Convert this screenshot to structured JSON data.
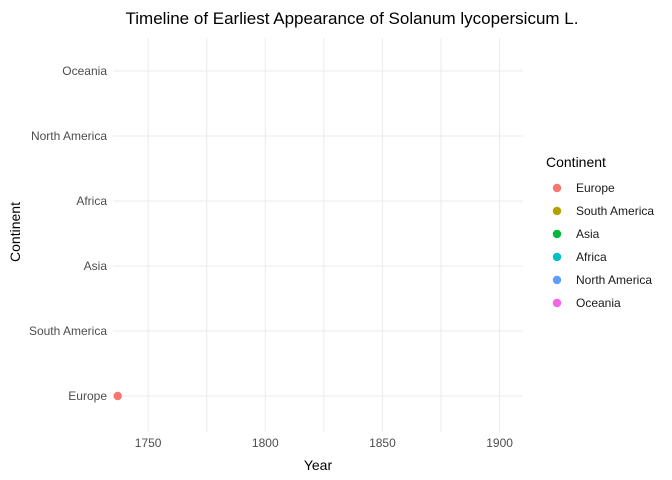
{
  "chart_data": {
    "type": "scatter",
    "title": "Timeline of Earliest Appearance of Solanum lycopersicum L.",
    "xlabel": "Year",
    "ylabel": "Continent",
    "xlim": [
      1735,
      1910
    ],
    "x_ticks": [
      1750,
      1800,
      1850,
      1900
    ],
    "categories": [
      "Europe",
      "South America",
      "Asia",
      "Africa",
      "North America",
      "Oceania"
    ],
    "grid": true,
    "legend": {
      "title": "Continent",
      "position": "right",
      "items": [
        {
          "label": "Europe",
          "color": "#F8766D"
        },
        {
          "label": "South America",
          "color": "#B79F00"
        },
        {
          "label": "Asia",
          "color": "#00BA38"
        },
        {
          "label": "Africa",
          "color": "#00BFC4"
        },
        {
          "label": "North America",
          "color": "#619CFF"
        },
        {
          "label": "Oceania",
          "color": "#F564E3"
        }
      ]
    },
    "points": [
      {
        "x": 1737,
        "y": "Europe",
        "color": "#F8766D"
      }
    ]
  }
}
